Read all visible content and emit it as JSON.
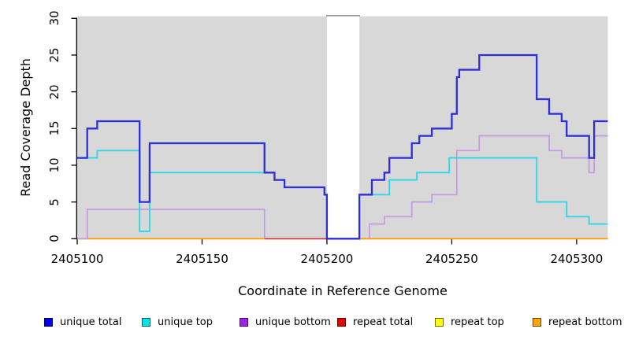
{
  "chart_data": {
    "type": "line",
    "subtype": "step",
    "title": "",
    "xlabel": "Coordinate in Reference Genome",
    "ylabel": "Read Coverage Depth",
    "xlim": [
      2405100,
      2405312.5
    ],
    "ylim": [
      0,
      30
    ],
    "x_ticks": [
      2405100,
      2405150,
      2405200,
      2405250,
      2405300
    ],
    "y_ticks": [
      0,
      5,
      10,
      15,
      20,
      25,
      30
    ],
    "grid": false,
    "panel_background": "#d8d8d8",
    "no_data_gap": {
      "from": 2405200,
      "to": 2405213
    },
    "legend_position": "bottom",
    "series": [
      {
        "name": "unique total",
        "color": "#2e2ed8",
        "swatch": "#0000ee",
        "points": [
          [
            2405100,
            11
          ],
          [
            2405104,
            15
          ],
          [
            2405108,
            16
          ],
          [
            2405125,
            5
          ],
          [
            2405129,
            13
          ],
          [
            2405175,
            9
          ],
          [
            2405179,
            8
          ],
          [
            2405183,
            7
          ],
          [
            2405199,
            6
          ],
          [
            2405200,
            0
          ],
          [
            2405213,
            6
          ],
          [
            2405218,
            8
          ],
          [
            2405223,
            9
          ],
          [
            2405225,
            11
          ],
          [
            2405234,
            13
          ],
          [
            2405237,
            14
          ],
          [
            2405242,
            15
          ],
          [
            2405250,
            17
          ],
          [
            2405252,
            22
          ],
          [
            2405253,
            23
          ],
          [
            2405261,
            25
          ],
          [
            2405284,
            19
          ],
          [
            2405289,
            17
          ],
          [
            2405294,
            16
          ],
          [
            2405296,
            14
          ],
          [
            2405305,
            11
          ],
          [
            2405307,
            16
          ],
          [
            2405312.5,
            16
          ]
        ]
      },
      {
        "name": "unique top",
        "color": "#2ed7e9",
        "swatch": "#00e6e6",
        "points": [
          [
            2405100,
            11
          ],
          [
            2405108,
            12
          ],
          [
            2405125,
            1
          ],
          [
            2405129,
            9
          ],
          [
            2405179,
            8
          ],
          [
            2405183,
            7
          ],
          [
            2405199,
            6
          ],
          [
            2405200,
            0
          ],
          [
            2405213,
            6
          ],
          [
            2405225,
            8
          ],
          [
            2405236,
            9
          ],
          [
            2405249,
            11
          ],
          [
            2405284,
            5
          ],
          [
            2405296,
            3
          ],
          [
            2405305,
            2
          ],
          [
            2405312.5,
            2
          ]
        ]
      },
      {
        "name": "unique bottom",
        "color": "#c49ae2",
        "swatch": "#a020f0",
        "points": [
          [
            2405100,
            0
          ],
          [
            2405104,
            4
          ],
          [
            2405175,
            0
          ],
          [
            2405217,
            2
          ],
          [
            2405223,
            3
          ],
          [
            2405234,
            5
          ],
          [
            2405242,
            6
          ],
          [
            2405252,
            12
          ],
          [
            2405261,
            14
          ],
          [
            2405289,
            12
          ],
          [
            2405294,
            11
          ],
          [
            2405305,
            9
          ],
          [
            2405307,
            14
          ],
          [
            2405312.5,
            14
          ]
        ]
      },
      {
        "name": "repeat total",
        "color": "#cc4055",
        "swatch": "#e60000",
        "points": [
          [
            2405100,
            0
          ],
          [
            2405312.5,
            0
          ]
        ]
      },
      {
        "name": "repeat top",
        "color": "#f5e800",
        "swatch": "#ffff00",
        "points": [
          [
            2405100,
            0
          ],
          [
            2405312.5,
            0
          ]
        ]
      },
      {
        "name": "repeat bottom",
        "color": "#ff9e00",
        "swatch": "#ffa500",
        "points": [
          [
            2405100,
            0
          ],
          [
            2405312.5,
            0
          ]
        ]
      }
    ]
  }
}
